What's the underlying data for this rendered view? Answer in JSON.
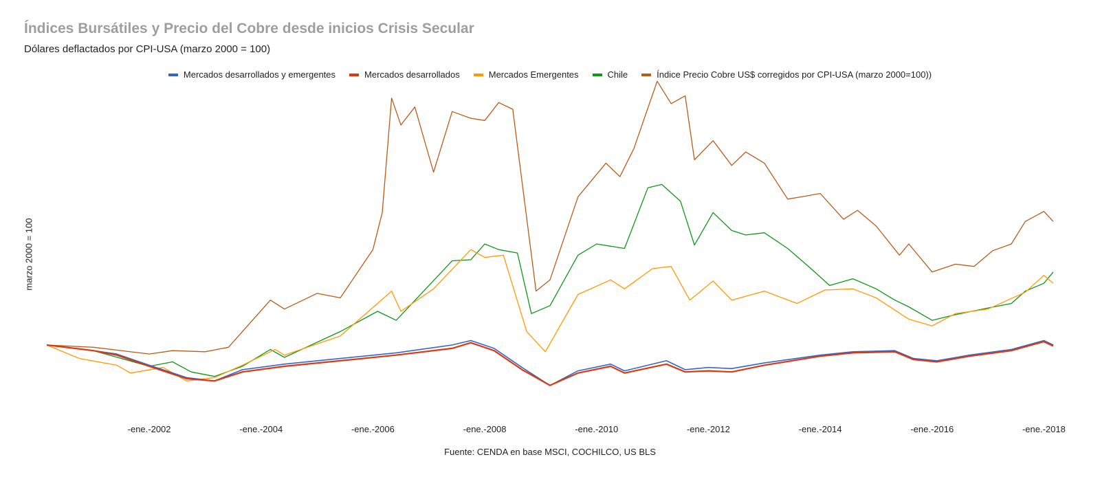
{
  "chart_data": {
    "type": "line",
    "title": "Índices Bursátiles y Precio del  Cobre desde inicios Crisis Secular",
    "subtitle": "Dólares deflactados por CPI-USA (marzo 2000 = 100)",
    "ylabel": "marzo 2000 = 100",
    "xlabel": "",
    "source": "Fuente: CENDA en base MSCI, COCHILCO, US BLS",
    "ylim": [
      40,
      340
    ],
    "xlim": [
      "2000-03",
      "2018-03"
    ],
    "grid": false,
    "legend_position": "top",
    "x_ticks": [
      {
        "x": "2002-01",
        "label": "-ene.-2002"
      },
      {
        "x": "2004-01",
        "label": "-ene.-2004"
      },
      {
        "x": "2006-01",
        "label": "-ene.-2006"
      },
      {
        "x": "2008-01",
        "label": "-ene.-2008"
      },
      {
        "x": "2010-01",
        "label": "-ene.-2010"
      },
      {
        "x": "2012-01",
        "label": "-ene.-2012"
      },
      {
        "x": "2014-01",
        "label": "-ene.-2014"
      },
      {
        "x": "2016-01",
        "label": "-ene.-2016"
      },
      {
        "x": "2018-01",
        "label": "-ene.-2018"
      }
    ],
    "series": [
      {
        "name": "Mercados desarrollados y emergentes",
        "color": "#3366cc",
        "width": 1.6,
        "points": [
          [
            "2000-03",
            100
          ],
          [
            "2001-01",
            95
          ],
          [
            "2001-06",
            92
          ],
          [
            "2002-01",
            82
          ],
          [
            "2002-09",
            71
          ],
          [
            "2003-03",
            68
          ],
          [
            "2003-09",
            78
          ],
          [
            "2004-06",
            83
          ],
          [
            "2005-06",
            88
          ],
          [
            "2006-06",
            93
          ],
          [
            "2007-06",
            100
          ],
          [
            "2007-10",
            104
          ],
          [
            "2008-03",
            97
          ],
          [
            "2008-09",
            80
          ],
          [
            "2009-03",
            64
          ],
          [
            "2009-09",
            77
          ],
          [
            "2010-04",
            83
          ],
          [
            "2010-07",
            77
          ],
          [
            "2011-04",
            86
          ],
          [
            "2011-08",
            78
          ],
          [
            "2012-01",
            80
          ],
          [
            "2012-06",
            79
          ],
          [
            "2013-01",
            84
          ],
          [
            "2014-01",
            91
          ],
          [
            "2014-08",
            94
          ],
          [
            "2015-05",
            95
          ],
          [
            "2015-09",
            88
          ],
          [
            "2016-02",
            86
          ],
          [
            "2016-09",
            91
          ],
          [
            "2017-06",
            96
          ],
          [
            "2018-01",
            104
          ],
          [
            "2018-03",
            100
          ]
        ]
      },
      {
        "name": "Mercados desarrollados",
        "color": "#dc3912",
        "width": 2.2,
        "points": [
          [
            "2000-03",
            100
          ],
          [
            "2001-01",
            95
          ],
          [
            "2001-06",
            91
          ],
          [
            "2002-01",
            81
          ],
          [
            "2002-09",
            70
          ],
          [
            "2003-03",
            68
          ],
          [
            "2003-09",
            76
          ],
          [
            "2004-06",
            81
          ],
          [
            "2005-06",
            86
          ],
          [
            "2006-06",
            91
          ],
          [
            "2007-06",
            97
          ],
          [
            "2007-10",
            102
          ],
          [
            "2008-03",
            95
          ],
          [
            "2008-09",
            78
          ],
          [
            "2009-03",
            64
          ],
          [
            "2009-09",
            75
          ],
          [
            "2010-04",
            81
          ],
          [
            "2010-07",
            75
          ],
          [
            "2011-04",
            83
          ],
          [
            "2011-08",
            76
          ],
          [
            "2012-01",
            77
          ],
          [
            "2012-06",
            76
          ],
          [
            "2013-01",
            82
          ],
          [
            "2014-01",
            90
          ],
          [
            "2014-08",
            93
          ],
          [
            "2015-05",
            94
          ],
          [
            "2015-09",
            87
          ],
          [
            "2016-02",
            85
          ],
          [
            "2016-09",
            90
          ],
          [
            "2017-06",
            95
          ],
          [
            "2018-01",
            103
          ],
          [
            "2018-03",
            99
          ]
        ]
      },
      {
        "name": "Mercados Emergentes",
        "color": "#ff9900",
        "width": 1.3,
        "points": [
          [
            "2000-03",
            100
          ],
          [
            "2000-10",
            88
          ],
          [
            "2001-06",
            82
          ],
          [
            "2001-09",
            75
          ],
          [
            "2002-04",
            80
          ],
          [
            "2002-09",
            68
          ],
          [
            "2003-03",
            71
          ],
          [
            "2003-09",
            82
          ],
          [
            "2004-04",
            96
          ],
          [
            "2004-06",
            91
          ],
          [
            "2005-06",
            108
          ],
          [
            "2006-05",
            148
          ],
          [
            "2006-07",
            130
          ],
          [
            "2007-02",
            150
          ],
          [
            "2007-10",
            185
          ],
          [
            "2008-01",
            178
          ],
          [
            "2008-05",
            180
          ],
          [
            "2008-10",
            112
          ],
          [
            "2009-02",
            94
          ],
          [
            "2009-09",
            145
          ],
          [
            "2010-04",
            158
          ],
          [
            "2010-07",
            150
          ],
          [
            "2011-01",
            168
          ],
          [
            "2011-05",
            170
          ],
          [
            "2011-09",
            140
          ],
          [
            "2012-02",
            157
          ],
          [
            "2012-06",
            140
          ],
          [
            "2013-01",
            148
          ],
          [
            "2013-08",
            137
          ],
          [
            "2014-02",
            149
          ],
          [
            "2014-08",
            150
          ],
          [
            "2015-01",
            142
          ],
          [
            "2015-08",
            123
          ],
          [
            "2016-01",
            117
          ],
          [
            "2016-06",
            128
          ],
          [
            "2017-01",
            132
          ],
          [
            "2017-09",
            147
          ],
          [
            "2018-01",
            162
          ],
          [
            "2018-03",
            155
          ]
        ]
      },
      {
        "name": "Chile",
        "color": "#109618",
        "width": 1.3,
        "points": [
          [
            "2000-03",
            100
          ],
          [
            "2001-01",
            95
          ],
          [
            "2002-01",
            81
          ],
          [
            "2002-06",
            85
          ],
          [
            "2002-10",
            76
          ],
          [
            "2003-03",
            72
          ],
          [
            "2003-09",
            81
          ],
          [
            "2004-03",
            96
          ],
          [
            "2004-06",
            89
          ],
          [
            "2005-06",
            112
          ],
          [
            "2006-02",
            130
          ],
          [
            "2006-06",
            122
          ],
          [
            "2007-06",
            175
          ],
          [
            "2007-10",
            176
          ],
          [
            "2008-01",
            190
          ],
          [
            "2008-04",
            185
          ],
          [
            "2008-08",
            182
          ],
          [
            "2008-11",
            128
          ],
          [
            "2009-03",
            135
          ],
          [
            "2009-09",
            180
          ],
          [
            "2010-01",
            190
          ],
          [
            "2010-07",
            186
          ],
          [
            "2010-12",
            240
          ],
          [
            "2011-03",
            243
          ],
          [
            "2011-07",
            228
          ],
          [
            "2011-10",
            189
          ],
          [
            "2012-02",
            218
          ],
          [
            "2012-06",
            202
          ],
          [
            "2012-09",
            198
          ],
          [
            "2013-01",
            200
          ],
          [
            "2013-06",
            186
          ],
          [
            "2013-11",
            168
          ],
          [
            "2014-03",
            153
          ],
          [
            "2014-08",
            159
          ],
          [
            "2015-01",
            150
          ],
          [
            "2015-05",
            140
          ],
          [
            "2015-08",
            134
          ],
          [
            "2016-01",
            122
          ],
          [
            "2016-06",
            127
          ],
          [
            "2017-01",
            133
          ],
          [
            "2017-06",
            137
          ],
          [
            "2017-09",
            148
          ],
          [
            "2018-01",
            155
          ],
          [
            "2018-03",
            165
          ]
        ]
      },
      {
        "name": "Índice Precio Cobre US$ corregidos por CPI-USA (marzo 2000=100))",
        "color": "#b85c1a",
        "width": 1.3,
        "points": [
          [
            "2000-03",
            100
          ],
          [
            "2001-01",
            98
          ],
          [
            "2002-01",
            92
          ],
          [
            "2002-06",
            95
          ],
          [
            "2003-01",
            94
          ],
          [
            "2003-06",
            98
          ],
          [
            "2004-03",
            140
          ],
          [
            "2004-06",
            132
          ],
          [
            "2005-01",
            146
          ],
          [
            "2005-06",
            142
          ],
          [
            "2006-01",
            185
          ],
          [
            "2006-03",
            218
          ],
          [
            "2006-05",
            320
          ],
          [
            "2006-07",
            296
          ],
          [
            "2006-10",
            312
          ],
          [
            "2007-02",
            254
          ],
          [
            "2007-06",
            308
          ],
          [
            "2007-10",
            302
          ],
          [
            "2008-01",
            300
          ],
          [
            "2008-04",
            316
          ],
          [
            "2008-07",
            310
          ],
          [
            "2008-12",
            148
          ],
          [
            "2009-03",
            158
          ],
          [
            "2009-09",
            232
          ],
          [
            "2010-03",
            262
          ],
          [
            "2010-06",
            250
          ],
          [
            "2010-09",
            275
          ],
          [
            "2011-02",
            335
          ],
          [
            "2011-05",
            315
          ],
          [
            "2011-08",
            322
          ],
          [
            "2011-10",
            265
          ],
          [
            "2012-02",
            282
          ],
          [
            "2012-06",
            260
          ],
          [
            "2012-09",
            272
          ],
          [
            "2013-01",
            262
          ],
          [
            "2013-06",
            230
          ],
          [
            "2013-09",
            232
          ],
          [
            "2014-01",
            235
          ],
          [
            "2014-06",
            212
          ],
          [
            "2014-09",
            220
          ],
          [
            "2015-01",
            206
          ],
          [
            "2015-06",
            180
          ],
          [
            "2015-08",
            190
          ],
          [
            "2016-01",
            165
          ],
          [
            "2016-06",
            172
          ],
          [
            "2016-10",
            170
          ],
          [
            "2017-02",
            184
          ],
          [
            "2017-06",
            190
          ],
          [
            "2017-09",
            210
          ],
          [
            "2018-01",
            219
          ],
          [
            "2018-03",
            210
          ]
        ]
      }
    ]
  }
}
